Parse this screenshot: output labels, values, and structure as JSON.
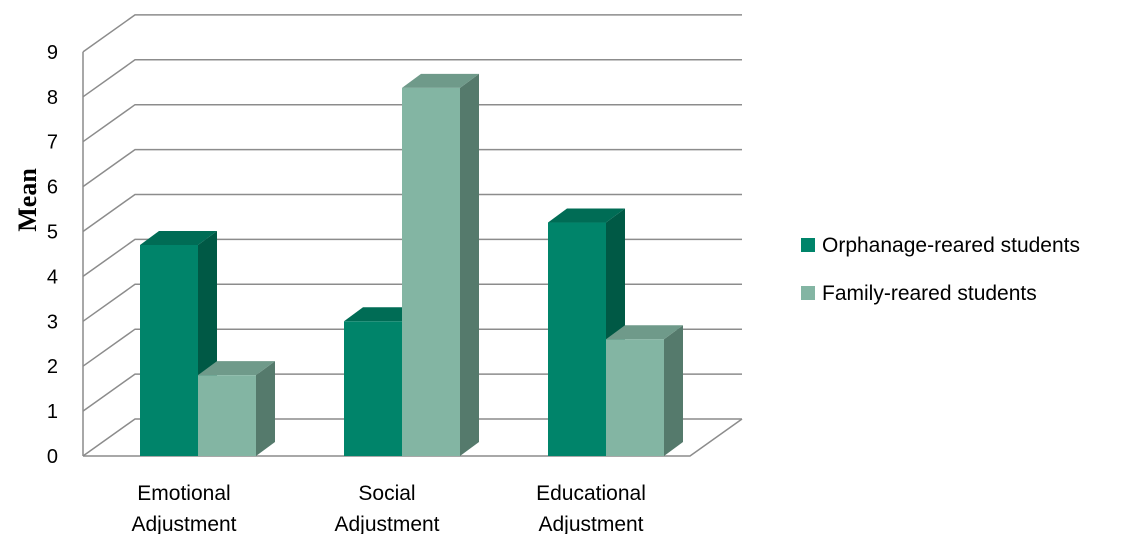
{
  "chart_data": {
    "type": "bar",
    "title": "",
    "xlabel": "",
    "ylabel": "Mean",
    "ylim": [
      0,
      9
    ],
    "yticks": [
      "0",
      "1",
      "2",
      "3",
      "4",
      "5",
      "6",
      "7",
      "8",
      "9"
    ],
    "categories": [
      "Emotional Adjustment",
      "Social Adjustment",
      "Educational Adjustment"
    ],
    "category_lines": [
      [
        "Emotional",
        "Adjustment"
      ],
      [
        "Social",
        "Adjustment"
      ],
      [
        "Educational",
        "Adjustment"
      ]
    ],
    "series": [
      {
        "name": "Orphanage-reared students",
        "values": [
          4.7,
          3.0,
          5.2
        ]
      },
      {
        "name": "Family-reared students",
        "values": [
          1.8,
          8.2,
          2.6
        ]
      }
    ],
    "grid": true,
    "legend_position": "right",
    "three_d": true
  },
  "colors": {
    "series1_front": "#00846a",
    "series1_side": "#005945",
    "series1_top": "#006c55",
    "series2_front": "#83b5a3",
    "series2_side": "#557a6c",
    "series2_top": "#6f9a8a",
    "grid": "#8c8c8c"
  }
}
